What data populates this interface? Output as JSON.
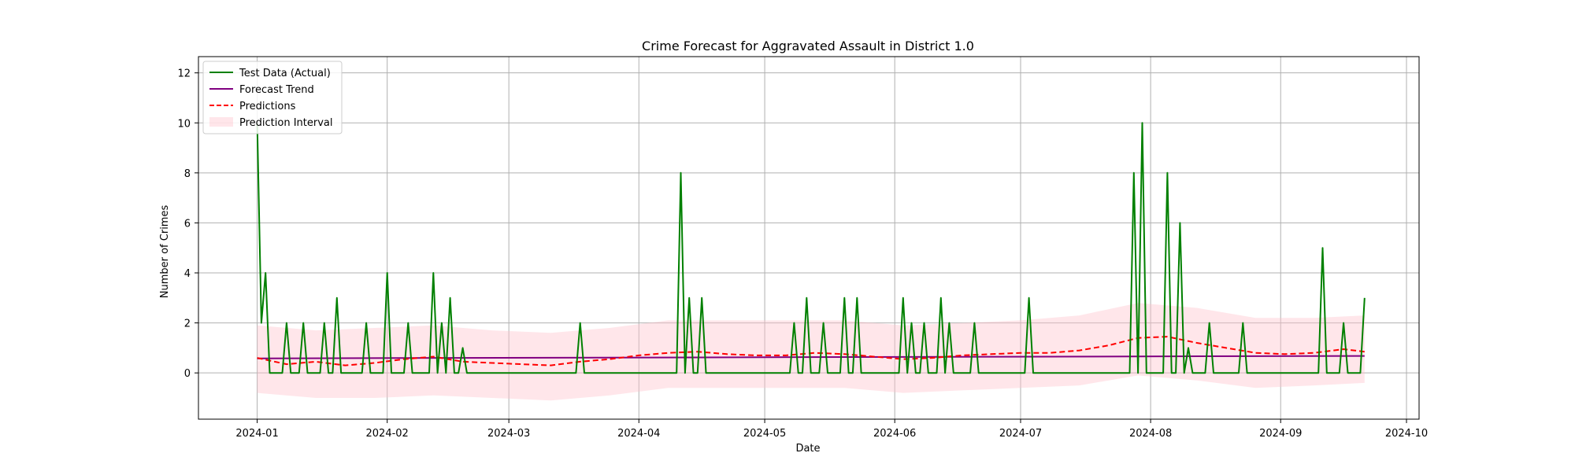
{
  "chart_data": {
    "type": "line",
    "title": "Crime Forecast for Aggravated Assault in District 1.0",
    "xlabel": "Date",
    "ylabel": "Number of Crimes",
    "x_range": [
      "2023-12-18",
      "2024-10-04"
    ],
    "ylim": [
      -1.85,
      12.65
    ],
    "grid": true,
    "legend_position": "upper left",
    "x_ticks": [
      {
        "date": "2024-01-01",
        "label": "2024-01"
      },
      {
        "date": "2024-02-01",
        "label": "2024-02"
      },
      {
        "date": "2024-03-01",
        "label": "2024-03"
      },
      {
        "date": "2024-04-01",
        "label": "2024-04"
      },
      {
        "date": "2024-05-01",
        "label": "2024-05"
      },
      {
        "date": "2024-06-01",
        "label": "2024-06"
      },
      {
        "date": "2024-07-01",
        "label": "2024-07"
      },
      {
        "date": "2024-08-01",
        "label": "2024-08"
      },
      {
        "date": "2024-09-01",
        "label": "2024-09"
      },
      {
        "date": "2024-10-01",
        "label": "2024-10"
      }
    ],
    "y_ticks": [
      0,
      2,
      4,
      6,
      8,
      10,
      12
    ],
    "series": [
      {
        "name": "Test Data (Actual)",
        "kind": "line",
        "color": "#008000",
        "baseline": 0,
        "points": [
          [
            "2024-01-01",
            10
          ],
          [
            "2024-01-02",
            2
          ],
          [
            "2024-01-03",
            4
          ],
          [
            "2024-01-04",
            0
          ],
          [
            "2024-01-07",
            0
          ],
          [
            "2024-01-08",
            2
          ],
          [
            "2024-01-09",
            0
          ],
          [
            "2024-01-11",
            0
          ],
          [
            "2024-01-12",
            2
          ],
          [
            "2024-01-13",
            0
          ],
          [
            "2024-01-16",
            0
          ],
          [
            "2024-01-17",
            2
          ],
          [
            "2024-01-18",
            0
          ],
          [
            "2024-01-19",
            0
          ],
          [
            "2024-01-20",
            3
          ],
          [
            "2024-01-21",
            0
          ],
          [
            "2024-01-26",
            0
          ],
          [
            "2024-01-27",
            2
          ],
          [
            "2024-01-28",
            0
          ],
          [
            "2024-01-30",
            0
          ],
          [
            "2024-02-01",
            4
          ],
          [
            "2024-02-02",
            0
          ],
          [
            "2024-02-05",
            0
          ],
          [
            "2024-02-06",
            2
          ],
          [
            "2024-02-07",
            0
          ],
          [
            "2024-02-11",
            0
          ],
          [
            "2024-02-12",
            4
          ],
          [
            "2024-02-13",
            0
          ],
          [
            "2024-02-14",
            2
          ],
          [
            "2024-02-15",
            0
          ],
          [
            "2024-02-16",
            3
          ],
          [
            "2024-02-17",
            0
          ],
          [
            "2024-02-19",
            1
          ],
          [
            "2024-02-20",
            0
          ],
          [
            "2024-03-17",
            0
          ],
          [
            "2024-03-18",
            2
          ],
          [
            "2024-03-19",
            0
          ],
          [
            "2024-04-09",
            0
          ],
          [
            "2024-04-11",
            8
          ],
          [
            "2024-04-12",
            0
          ],
          [
            "2024-04-13",
            3
          ],
          [
            "2024-04-14",
            0
          ],
          [
            "2024-04-15",
            0
          ],
          [
            "2024-04-16",
            3
          ],
          [
            "2024-04-17",
            0
          ],
          [
            "2024-05-06",
            0
          ],
          [
            "2024-05-08",
            2
          ],
          [
            "2024-05-09",
            0
          ],
          [
            "2024-05-10",
            0
          ],
          [
            "2024-05-11",
            3
          ],
          [
            "2024-05-12",
            0
          ],
          [
            "2024-05-14",
            0
          ],
          [
            "2024-05-15",
            2
          ],
          [
            "2024-05-16",
            0
          ],
          [
            "2024-05-19",
            0
          ],
          [
            "2024-05-20",
            3
          ],
          [
            "2024-05-21",
            0
          ],
          [
            "2024-05-22",
            0
          ],
          [
            "2024-05-23",
            3
          ],
          [
            "2024-05-24",
            0
          ],
          [
            "2024-06-01",
            0
          ],
          [
            "2024-06-03",
            3
          ],
          [
            "2024-06-04",
            0
          ],
          [
            "2024-06-05",
            2
          ],
          [
            "2024-06-06",
            0
          ],
          [
            "2024-06-07",
            0
          ],
          [
            "2024-06-08",
            2
          ],
          [
            "2024-06-09",
            0
          ],
          [
            "2024-06-10",
            0
          ],
          [
            "2024-06-12",
            3
          ],
          [
            "2024-06-14",
            2
          ],
          [
            "2024-06-15",
            0
          ],
          [
            "2024-06-19",
            0
          ],
          [
            "2024-06-20",
            2
          ],
          [
            "2024-06-21",
            0
          ],
          [
            "2024-07-02",
            0
          ],
          [
            "2024-07-03",
            3
          ],
          [
            "2024-07-04",
            0
          ],
          [
            "2024-07-26",
            0
          ],
          [
            "2024-07-28",
            8
          ],
          [
            "2024-07-29",
            0
          ],
          [
            "2024-07-30",
            10
          ],
          [
            "2024-07-31",
            0
          ],
          [
            "2024-08-04",
            0
          ],
          [
            "2024-08-05",
            8
          ],
          [
            "2024-08-06",
            0
          ],
          [
            "2024-08-07",
            0
          ],
          [
            "2024-08-08",
            6
          ],
          [
            "2024-08-09",
            0
          ],
          [
            "2024-08-10",
            1
          ],
          [
            "2024-08-11",
            0
          ],
          [
            "2024-08-14",
            0
          ],
          [
            "2024-08-15",
            2
          ],
          [
            "2024-08-16",
            0
          ],
          [
            "2024-08-22",
            0
          ],
          [
            "2024-08-23",
            2
          ],
          [
            "2024-08-24",
            0
          ],
          [
            "2024-09-10",
            0
          ],
          [
            "2024-09-11",
            5
          ],
          [
            "2024-09-12",
            0
          ],
          [
            "2024-09-15",
            0
          ],
          [
            "2024-09-16",
            2
          ],
          [
            "2024-09-17",
            0
          ],
          [
            "2024-09-19",
            0
          ],
          [
            "2024-09-21",
            3
          ]
        ]
      },
      {
        "name": "Forecast Trend",
        "kind": "line",
        "color": "#800080",
        "points": [
          [
            "2024-01-01",
            0.58
          ],
          [
            "2024-09-21",
            0.68
          ]
        ]
      },
      {
        "name": "Predictions",
        "kind": "dashed-line",
        "color": "#ff0000",
        "points": [
          [
            "2024-01-01",
            0.6
          ],
          [
            "2024-01-08",
            0.35
          ],
          [
            "2024-01-15",
            0.45
          ],
          [
            "2024-01-22",
            0.3
          ],
          [
            "2024-01-29",
            0.4
          ],
          [
            "2024-02-05",
            0.55
          ],
          [
            "2024-02-12",
            0.65
          ],
          [
            "2024-02-19",
            0.45
          ],
          [
            "2024-02-26",
            0.4
          ],
          [
            "2024-03-04",
            0.35
          ],
          [
            "2024-03-11",
            0.3
          ],
          [
            "2024-03-18",
            0.45
          ],
          [
            "2024-03-25",
            0.55
          ],
          [
            "2024-04-01",
            0.7
          ],
          [
            "2024-04-08",
            0.8
          ],
          [
            "2024-04-15",
            0.85
          ],
          [
            "2024-04-22",
            0.75
          ],
          [
            "2024-04-29",
            0.7
          ],
          [
            "2024-05-06",
            0.7
          ],
          [
            "2024-05-13",
            0.8
          ],
          [
            "2024-05-20",
            0.75
          ],
          [
            "2024-05-27",
            0.65
          ],
          [
            "2024-06-03",
            0.55
          ],
          [
            "2024-06-10",
            0.6
          ],
          [
            "2024-06-17",
            0.7
          ],
          [
            "2024-06-24",
            0.75
          ],
          [
            "2024-07-01",
            0.8
          ],
          [
            "2024-07-08",
            0.8
          ],
          [
            "2024-07-15",
            0.9
          ],
          [
            "2024-07-22",
            1.1
          ],
          [
            "2024-07-29",
            1.4
          ],
          [
            "2024-08-05",
            1.45
          ],
          [
            "2024-08-12",
            1.2
          ],
          [
            "2024-08-19",
            1.0
          ],
          [
            "2024-08-26",
            0.8
          ],
          [
            "2024-09-02",
            0.75
          ],
          [
            "2024-09-09",
            0.8
          ],
          [
            "2024-09-16",
            0.95
          ],
          [
            "2024-09-21",
            0.85
          ]
        ]
      },
      {
        "name": "Prediction Interval",
        "kind": "band",
        "color": "#ffc0cb",
        "points": [
          [
            "2024-01-01",
            -0.8,
            1.9
          ],
          [
            "2024-01-15",
            -1.0,
            1.7
          ],
          [
            "2024-01-29",
            -1.0,
            1.8
          ],
          [
            "2024-02-12",
            -0.9,
            1.9
          ],
          [
            "2024-02-26",
            -1.0,
            1.7
          ],
          [
            "2024-03-11",
            -1.1,
            1.6
          ],
          [
            "2024-03-25",
            -0.9,
            1.8
          ],
          [
            "2024-04-08",
            -0.6,
            2.1
          ],
          [
            "2024-04-22",
            -0.6,
            2.1
          ],
          [
            "2024-05-06",
            -0.6,
            2.1
          ],
          [
            "2024-05-20",
            -0.6,
            2.1
          ],
          [
            "2024-06-03",
            -0.8,
            1.9
          ],
          [
            "2024-06-17",
            -0.7,
            2.0
          ],
          [
            "2024-07-01",
            -0.6,
            2.1
          ],
          [
            "2024-07-15",
            -0.5,
            2.3
          ],
          [
            "2024-07-29",
            -0.1,
            2.8
          ],
          [
            "2024-08-12",
            -0.3,
            2.6
          ],
          [
            "2024-08-26",
            -0.6,
            2.2
          ],
          [
            "2024-09-09",
            -0.5,
            2.2
          ],
          [
            "2024-09-21",
            -0.4,
            2.3
          ]
        ]
      }
    ]
  }
}
